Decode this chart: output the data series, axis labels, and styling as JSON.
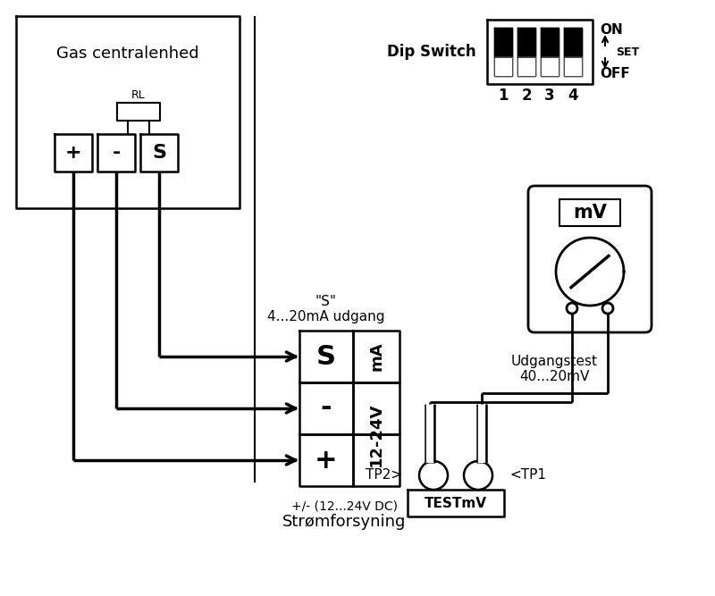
{
  "bg_color": "#ffffff",
  "line_color": "#000000",
  "gas_central_label": "Gas centralenhed",
  "rl_label": "RL",
  "terminal_labels_left": [
    "+",
    "-",
    "S"
  ],
  "connector_label_s": "\"S\"",
  "connector_label_ma": "4...20mA udgang",
  "power_label1": "+/- (12...24V DC)",
  "power_label2": "Strømforsyning",
  "dip_switch_label": "Dip Switch",
  "dip_numbers": [
    "1",
    "2",
    "3",
    "4"
  ],
  "dip_on": "ON",
  "dip_set": "SET",
  "dip_off": "OFF",
  "mv_label": "mV",
  "udgangstest_label1": "Udgangstest",
  "udgangstest_label2": "40...20mV",
  "tp2_label": "TP2>",
  "tp1_label": "<TP1",
  "test_label": "TESTmV",
  "connector_rows": [
    "S",
    "-",
    "+"
  ],
  "connector_right_top": "mA",
  "connector_right_bot": "12-24V"
}
